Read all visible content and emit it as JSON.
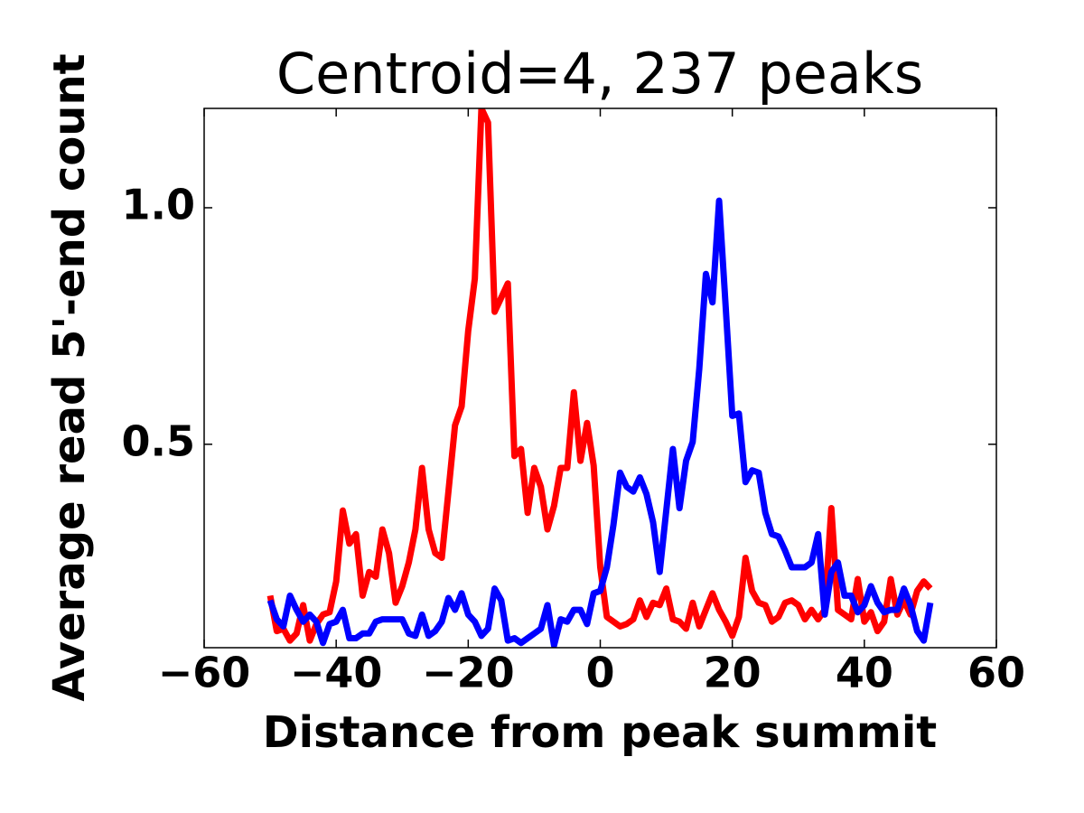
{
  "chart_data": {
    "type": "line",
    "title": "Centroid=4, 237 peaks",
    "xlabel": "Distance from peak summit",
    "ylabel": "Average read 5'-end count",
    "x": [
      -50,
      -49,
      -48,
      -47,
      -46,
      -45,
      -44,
      -43,
      -42,
      -41,
      -40,
      -39,
      -38,
      -37,
      -36,
      -35,
      -34,
      -33,
      -32,
      -31,
      -30,
      -29,
      -28,
      -27,
      -26,
      -25,
      -24,
      -23,
      -22,
      -21,
      -20,
      -19,
      -18,
      -17,
      -16,
      -15,
      -14,
      -13,
      -12,
      -11,
      -10,
      -9,
      -8,
      -7,
      -6,
      -5,
      -4,
      -3,
      -2,
      -1,
      0,
      1,
      2,
      3,
      4,
      5,
      6,
      7,
      8,
      9,
      10,
      11,
      12,
      13,
      14,
      15,
      16,
      17,
      18,
      19,
      20,
      21,
      22,
      23,
      24,
      25,
      26,
      27,
      28,
      29,
      30,
      31,
      32,
      33,
      34,
      35,
      36,
      37,
      38,
      39,
      40,
      41,
      42,
      43,
      44,
      45,
      46,
      47,
      48,
      49,
      50
    ],
    "series": [
      {
        "color": "#ff0000",
        "values": [
          0.18,
          0.105,
          0.11,
          0.085,
          0.1,
          0.16,
          0.085,
          0.12,
          0.14,
          0.145,
          0.21,
          0.36,
          0.29,
          0.31,
          0.18,
          0.23,
          0.22,
          0.32,
          0.27,
          0.165,
          0.2,
          0.25,
          0.32,
          0.45,
          0.32,
          0.27,
          0.26,
          0.4,
          0.54,
          0.58,
          0.74,
          0.85,
          1.21,
          1.18,
          0.78,
          0.81,
          0.84,
          0.475,
          0.49,
          0.355,
          0.45,
          0.41,
          0.32,
          0.37,
          0.45,
          0.45,
          0.61,
          0.465,
          0.545,
          0.455,
          0.24,
          0.135,
          0.125,
          0.115,
          0.12,
          0.13,
          0.17,
          0.135,
          0.165,
          0.16,
          0.195,
          0.13,
          0.125,
          0.11,
          0.165,
          0.115,
          0.15,
          0.185,
          0.15,
          0.125,
          0.095,
          0.135,
          0.26,
          0.19,
          0.165,
          0.16,
          0.125,
          0.135,
          0.165,
          0.17,
          0.16,
          0.13,
          0.15,
          0.13,
          0.15,
          0.365,
          0.15,
          0.14,
          0.13,
          0.215,
          0.125,
          0.145,
          0.105,
          0.125,
          0.215,
          0.14,
          0.17,
          0.14,
          0.19,
          0.21,
          0.195
        ]
      },
      {
        "color": "#0000ff",
        "values": [
          0.17,
          0.13,
          0.115,
          0.18,
          0.15,
          0.125,
          0.14,
          0.125,
          0.08,
          0.12,
          0.125,
          0.15,
          0.09,
          0.09,
          0.1,
          0.1,
          0.125,
          0.13,
          0.13,
          0.13,
          0.13,
          0.1,
          0.095,
          0.14,
          0.095,
          0.105,
          0.125,
          0.175,
          0.15,
          0.185,
          0.14,
          0.125,
          0.095,
          0.11,
          0.195,
          0.17,
          0.085,
          0.09,
          0.08,
          0.09,
          0.1,
          0.11,
          0.16,
          0.075,
          0.13,
          0.125,
          0.15,
          0.15,
          0.12,
          0.185,
          0.19,
          0.24,
          0.33,
          0.44,
          0.41,
          0.4,
          0.43,
          0.395,
          0.335,
          0.23,
          0.36,
          0.49,
          0.365,
          0.465,
          0.505,
          0.66,
          0.86,
          0.8,
          1.015,
          0.79,
          0.56,
          0.565,
          0.42,
          0.445,
          0.44,
          0.355,
          0.31,
          0.305,
          0.275,
          0.24,
          0.24,
          0.24,
          0.25,
          0.31,
          0.14,
          0.23,
          0.25,
          0.18,
          0.18,
          0.145,
          0.16,
          0.2,
          0.165,
          0.145,
          0.15,
          0.15,
          0.195,
          0.16,
          0.105,
          0.085,
          0.165
        ]
      }
    ],
    "xlim": [
      -60,
      60
    ],
    "xticks": [
      {
        "value": -60,
        "label": "−60"
      },
      {
        "value": -40,
        "label": "−40"
      },
      {
        "value": -20,
        "label": "−20"
      },
      0,
      20,
      40,
      60
    ],
    "ylim": [
      0.07,
      1.21
    ],
    "yticks": [
      0.5,
      {
        "value": 1,
        "label": "1.0"
      }
    ]
  }
}
